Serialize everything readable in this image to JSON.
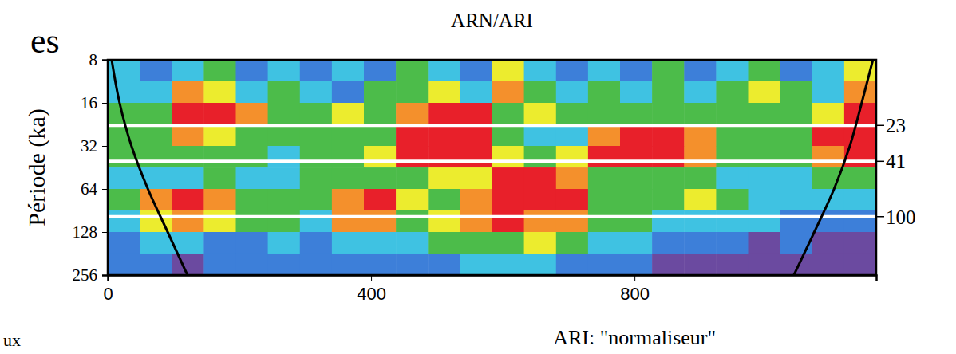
{
  "chart_data": {
    "type": "heatmap",
    "title": "ARN/ARI",
    "x_label": "ARI: \"normaliseur\"",
    "y_label": "Période (ka)",
    "annotations": [
      "es",
      "ux"
    ],
    "log": "y",
    "xlim": [
      0,
      1167
    ],
    "xticks": [
      0,
      400,
      800
    ],
    "ylim": [
      8,
      256
    ],
    "yticks": [
      8,
      16,
      32,
      64,
      128,
      256
    ],
    "hlines": [
      23,
      41,
      100
    ],
    "x_bins": [
      0,
      48.6,
      97.3,
      145.9,
      194.5,
      243.1,
      291.8,
      340.4,
      389,
      437.6,
      486.3,
      534.9,
      583.5,
      632.1,
      680.8,
      729.4,
      778,
      826.6,
      875.3,
      923.9,
      972.5,
      1021.1,
      1069.8,
      1118.4,
      1167
    ],
    "y_bins": [
      8,
      11.3,
      16,
      22.6,
      32,
      45.3,
      64,
      90.5,
      128,
      181,
      256
    ],
    "cells": [
      [
        2,
        1,
        2,
        3,
        1,
        2,
        1,
        2,
        1,
        3,
        2,
        1,
        4,
        2,
        1,
        2,
        1,
        3,
        1,
        2,
        3,
        1,
        2,
        4
      ],
      [
        2,
        2,
        5,
        4,
        2,
        3,
        2,
        1,
        3,
        3,
        4,
        2,
        5,
        3,
        2,
        3,
        2,
        3,
        2,
        3,
        4,
        3,
        2,
        5
      ],
      [
        3,
        3,
        6,
        6,
        5,
        3,
        3,
        4,
        3,
        5,
        6,
        6,
        3,
        4,
        3,
        3,
        3,
        3,
        3,
        3,
        3,
        3,
        4,
        6
      ],
      [
        3,
        3,
        5,
        4,
        3,
        3,
        3,
        3,
        3,
        6,
        6,
        6,
        3,
        2,
        2,
        5,
        6,
        6,
        5,
        3,
        3,
        3,
        6,
        6
      ],
      [
        3,
        3,
        3,
        3,
        3,
        2,
        3,
        3,
        4,
        6,
        6,
        6,
        4,
        3,
        4,
        6,
        6,
        6,
        5,
        3,
        3,
        3,
        5,
        6
      ],
      [
        2,
        2,
        2,
        3,
        2,
        2,
        3,
        3,
        3,
        3,
        4,
        4,
        6,
        6,
        5,
        3,
        3,
        3,
        3,
        2,
        2,
        2,
        3,
        3
      ],
      [
        3,
        5,
        6,
        5,
        3,
        3,
        3,
        5,
        6,
        4,
        3,
        5,
        6,
        6,
        6,
        3,
        3,
        3,
        4,
        3,
        2,
        2,
        2,
        2
      ],
      [
        2,
        4,
        5,
        4,
        3,
        3,
        2,
        5,
        5,
        3,
        4,
        5,
        6,
        5,
        5,
        3,
        3,
        2,
        2,
        2,
        2,
        1,
        1,
        1
      ],
      [
        1,
        2,
        2,
        1,
        1,
        2,
        1,
        2,
        2,
        2,
        3,
        3,
        3,
        4,
        3,
        2,
        2,
        1,
        1,
        1,
        0,
        1,
        0,
        0
      ],
      [
        1,
        1,
        0,
        1,
        1,
        1,
        1,
        1,
        1,
        1,
        1,
        2,
        2,
        2,
        1,
        1,
        1,
        0,
        0,
        0,
        0,
        0,
        0,
        0
      ]
    ],
    "cone_of_influence": [
      {
        "x": [
          6,
          18,
          36,
          61,
          91,
          121
        ],
        "y": [
          8,
          16,
          32,
          64,
          128,
          256
        ]
      },
      {
        "x": [
          1162,
          1145,
          1127,
          1103,
          1073,
          1042
        ],
        "y": [
          8,
          16,
          32,
          64,
          128,
          256
        ]
      }
    ]
  }
}
